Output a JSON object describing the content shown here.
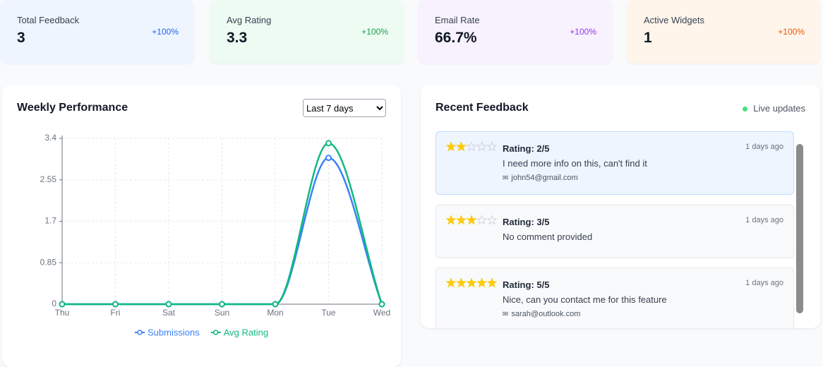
{
  "stats": [
    {
      "label": "Total Feedback",
      "value": "3",
      "change": "+100%"
    },
    {
      "label": "Avg Rating",
      "value": "3.3",
      "change": "+100%"
    },
    {
      "label": "Email Rate",
      "value": "66.7%",
      "change": "+100%"
    },
    {
      "label": "Active Widgets",
      "value": "1",
      "change": "+100%"
    }
  ],
  "chart_panel": {
    "title": "Weekly Performance",
    "select": "Last 7 days"
  },
  "chart_data": {
    "type": "line",
    "categories": [
      "Thu",
      "Fri",
      "Sat",
      "Sun",
      "Mon",
      "Tue",
      "Wed"
    ],
    "series": [
      {
        "name": "Submissions",
        "color": "#3b82f6",
        "values": [
          0,
          0,
          0,
          0,
          0,
          3,
          0
        ]
      },
      {
        "name": "Avg Rating",
        "color": "#10b981",
        "values": [
          0,
          0,
          0,
          0,
          0,
          3.3,
          0
        ]
      }
    ],
    "ylim": [
      0,
      3.4
    ],
    "yticks": [
      0,
      0.85,
      1.7,
      2.55,
      3.4
    ],
    "grid": true,
    "legend": "bottom"
  },
  "feedback_panel": {
    "title": "Recent Feedback",
    "status": "Live updates",
    "items": [
      {
        "rating": 2,
        "rating_label": "Rating: 2/5",
        "time": "1 days ago",
        "comment": "I need more info on this, can't find it",
        "email": "john54@gmail.com"
      },
      {
        "rating": 3,
        "rating_label": "Rating: 3/5",
        "time": "1 days ago",
        "comment": "No comment provided"
      },
      {
        "rating": 5,
        "rating_label": "Rating: 5/5",
        "time": "1 days ago",
        "comment": "Nice, can you contact me for this feature",
        "email": "sarah@outlook.com"
      }
    ]
  }
}
